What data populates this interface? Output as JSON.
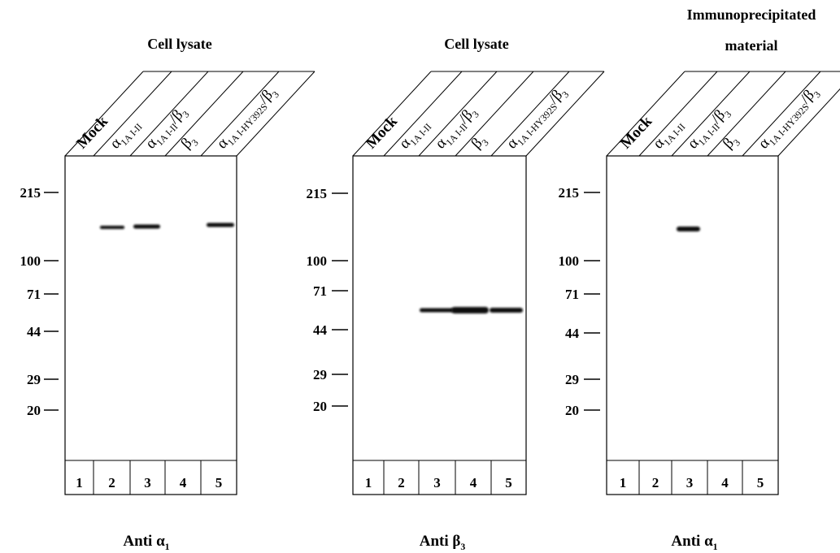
{
  "panels": [
    {
      "title": [
        "Cell lysate"
      ],
      "lanes": [
        [
          {
            "text": "Mock"
          }
        ],
        [
          {
            "text": "α"
          },
          {
            "sub": "1A I-II"
          }
        ],
        [
          {
            "text": "α"
          },
          {
            "sub": "1A I-II"
          },
          {
            "text": "/β"
          },
          {
            "sub": "3"
          }
        ],
        [
          {
            "text": "β"
          },
          {
            "sub": "3"
          }
        ],
        [
          {
            "text": "α"
          },
          {
            "sub": "1A I-HY392S"
          },
          {
            "text": "/β"
          },
          {
            "sub": "3"
          }
        ]
      ],
      "markers": [
        "215",
        "100",
        "71",
        "44",
        "29",
        "20"
      ],
      "lane_numbers": [
        "1",
        "2",
        "3",
        "4",
        "5"
      ],
      "antibody": [
        {
          "text": "Anti α"
        },
        {
          "sub": "1"
        }
      ]
    },
    {
      "title": [
        "Cell lysate"
      ],
      "lanes": [
        [
          {
            "text": "Mock"
          }
        ],
        [
          {
            "text": "α"
          },
          {
            "sub": "1A I-II"
          }
        ],
        [
          {
            "text": "α"
          },
          {
            "sub": "1A I-II"
          },
          {
            "text": "/β"
          },
          {
            "sub": "3"
          }
        ],
        [
          {
            "text": "β"
          },
          {
            "sub": "3"
          }
        ],
        [
          {
            "text": "α"
          },
          {
            "sub": "1A I-HY392S"
          },
          {
            "text": "/β"
          },
          {
            "sub": "3"
          }
        ]
      ],
      "markers": [
        "215",
        "100",
        "71",
        "44",
        "29",
        "20"
      ],
      "lane_numbers": [
        "1",
        "2",
        "3",
        "4",
        "5"
      ],
      "antibody": [
        {
          "text": "Anti β"
        },
        {
          "sub": "3"
        }
      ]
    },
    {
      "title": [
        "Immunoprecipitated",
        "material"
      ],
      "lanes": [
        [
          {
            "text": "Mock"
          }
        ],
        [
          {
            "text": "α"
          },
          {
            "sub": "1A I-II"
          }
        ],
        [
          {
            "text": "α"
          },
          {
            "sub": "1A I-II"
          },
          {
            "text": "/β"
          },
          {
            "sub": "3"
          }
        ],
        [
          {
            "text": "β"
          },
          {
            "sub": "3"
          }
        ],
        [
          {
            "text": "α"
          },
          {
            "sub": "1A I-HY392S"
          },
          {
            "text": "/β"
          },
          {
            "sub": "3"
          }
        ]
      ],
      "markers": [
        "215",
        "100",
        "71",
        "44",
        "29",
        "20"
      ],
      "lane_numbers": [
        "1",
        "2",
        "3",
        "4",
        "5"
      ],
      "antibody": [
        {
          "text": "Anti α"
        },
        {
          "sub": "1"
        }
      ]
    }
  ]
}
